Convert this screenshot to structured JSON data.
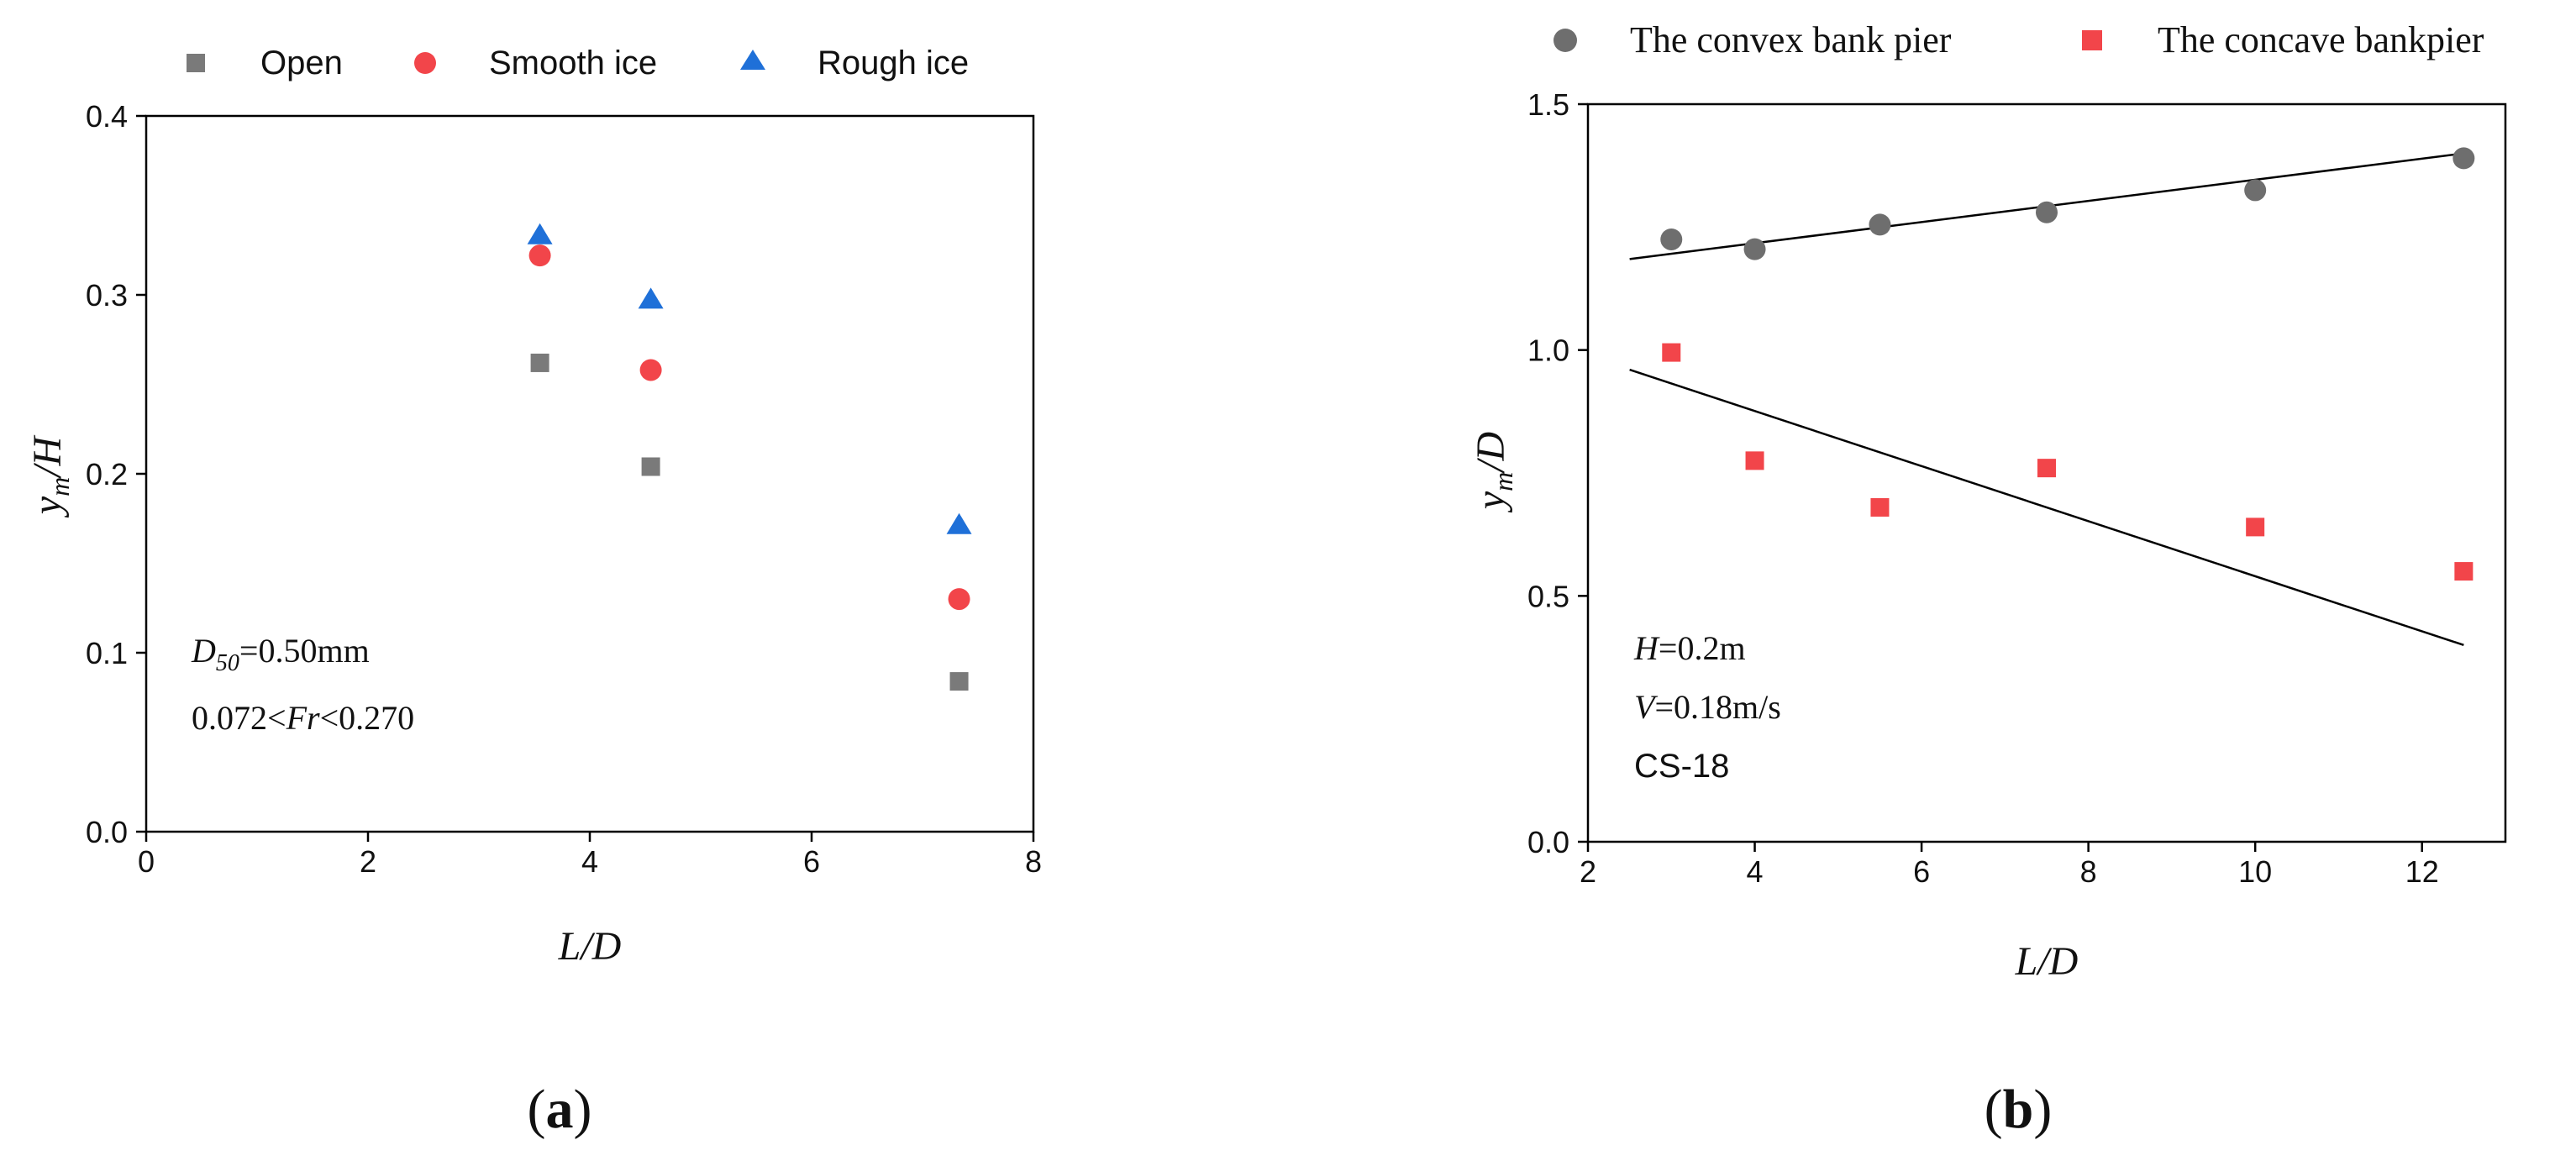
{
  "chart_data": [
    {
      "type": "scatter",
      "panel_label": "(a)",
      "panel_letter": "a",
      "xlabel": "L/D",
      "ylabel": "y_m/H",
      "xlim": [
        0,
        8
      ],
      "ylim": [
        0.0,
        0.4
      ],
      "xticks": [
        0,
        2,
        4,
        6,
        8
      ],
      "yticks": [
        0.0,
        0.1,
        0.2,
        0.3,
        0.4
      ],
      "xtick_labels": [
        "0",
        "2",
        "4",
        "6",
        "8"
      ],
      "ytick_labels": [
        "0.0",
        "0.1",
        "0.2",
        "0.3",
        "0.4"
      ],
      "legend_position": "top",
      "series": [
        {
          "name": "Open",
          "marker": "square",
          "color": "#7a7a7a",
          "points": [
            [
              3.55,
              0.262
            ],
            [
              4.55,
              0.204
            ],
            [
              7.33,
              0.084
            ]
          ]
        },
        {
          "name": "Smooth ice",
          "marker": "circle",
          "color": "#f2454a",
          "points": [
            [
              3.55,
              0.322
            ],
            [
              4.55,
              0.258
            ],
            [
              7.33,
              0.13
            ]
          ]
        },
        {
          "name": "Rough ice",
          "marker": "triangle",
          "color": "#1f70d8",
          "points": [
            [
              3.55,
              0.333
            ],
            [
              4.55,
              0.297
            ],
            [
              7.33,
              0.171
            ]
          ]
        }
      ],
      "annotations": [
        "D50=0.50mm",
        "0.072<Fr<0.270"
      ]
    },
    {
      "type": "scatter",
      "panel_label": "(b)",
      "panel_letter": "b",
      "xlabel": "L/D",
      "ylabel": "y_m/D",
      "xlim": [
        2,
        13
      ],
      "ylim": [
        0.0,
        1.5
      ],
      "xticks": [
        2,
        4,
        6,
        8,
        10,
        12
      ],
      "yticks": [
        0.0,
        0.5,
        1.0,
        1.5
      ],
      "xtick_labels": [
        "2",
        "4",
        "6",
        "8",
        "10",
        "12"
      ],
      "ytick_labels": [
        "0.0",
        "0.5",
        "1.0",
        "1.5"
      ],
      "legend_position": "top",
      "series": [
        {
          "name": "The convex bank pier",
          "marker": "circle",
          "color": "#6e6e6e",
          "points": [
            [
              3,
              1.225
            ],
            [
              4,
              1.205
            ],
            [
              5.5,
              1.255
            ],
            [
              7.5,
              1.28
            ],
            [
              10,
              1.325
            ],
            [
              12.5,
              1.39
            ]
          ],
          "trend": [
            [
              2.5,
              1.185
            ],
            [
              12.5,
              1.4
            ]
          ]
        },
        {
          "name": "The concave bankpier",
          "marker": "square",
          "color": "#f2454a",
          "points": [
            [
              3,
              0.995
            ],
            [
              4,
              0.775
            ],
            [
              5.5,
              0.68
            ],
            [
              7.5,
              0.76
            ],
            [
              10,
              0.64
            ],
            [
              12.5,
              0.55
            ]
          ],
          "trend": [
            [
              2.5,
              0.96
            ],
            [
              12.5,
              0.4
            ]
          ]
        }
      ],
      "annotations": [
        "H=0.2m",
        "V=0.18m/s",
        "CS-18"
      ]
    }
  ]
}
